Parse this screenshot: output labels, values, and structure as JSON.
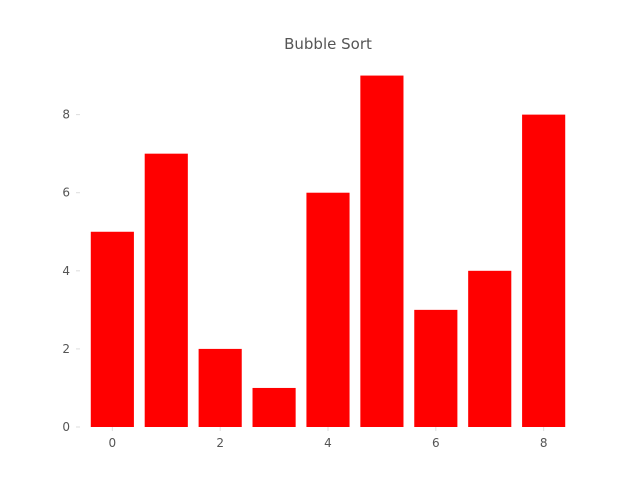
{
  "chart_data": {
    "type": "bar",
    "title": "Bubble Sort",
    "xlabel": "",
    "ylabel": "",
    "x": [
      0,
      1,
      2,
      3,
      4,
      5,
      6,
      7,
      8
    ],
    "values": [
      5,
      7,
      2,
      1,
      6,
      9,
      3,
      4,
      8
    ],
    "bar_color": "#ff0000",
    "x_ticks": [
      "0",
      "2",
      "4",
      "6",
      "8"
    ],
    "y_ticks": [
      "0",
      "2",
      "4",
      "6",
      "8"
    ],
    "xlim": [
      -0.6,
      8.6
    ],
    "ylim": [
      0,
      9.45
    ],
    "grid": false,
    "legend": "none"
  }
}
